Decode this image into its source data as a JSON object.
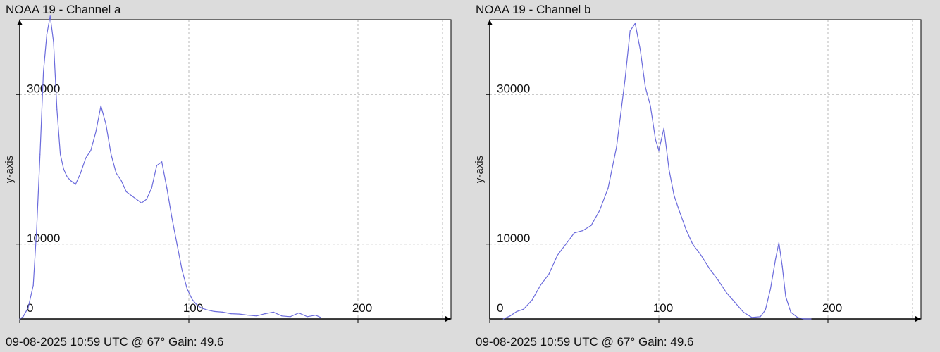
{
  "panels": [
    {
      "title": "NOAA 19 - Channel a",
      "footer": "09-08-2025 10:59 UTC @ 67° Gain: 49.6"
    },
    {
      "title": "NOAA 19 - Channel b",
      "footer": "09-08-2025 10:59 UTC @ 67° Gain: 49.6"
    }
  ],
  "colors": {
    "background": "#dcdcdc",
    "plot_background": "#ffffff",
    "line": "#6b6bdc",
    "grid": "#b8b8b8",
    "axis": "#000000"
  },
  "chart_data": [
    {
      "type": "line",
      "title": "NOAA 19 - Channel a",
      "xlabel": "",
      "ylabel": "y-axis",
      "xlim": [
        0,
        255
      ],
      "ylim": [
        0,
        40000
      ],
      "x_ticks": [
        0,
        100,
        200
      ],
      "y_ticks": [
        10000,
        30000
      ],
      "grid": true,
      "series": [
        {
          "x": [
            0,
            2,
            5,
            8,
            10,
            12,
            14,
            16,
            18,
            20,
            22,
            24,
            26,
            28,
            30,
            33,
            36,
            39,
            42,
            45,
            48,
            51,
            54,
            57,
            60,
            63,
            66,
            69,
            72,
            75,
            78,
            81,
            84,
            87,
            90,
            93,
            96,
            99,
            102,
            105,
            108,
            111,
            115,
            120,
            125,
            130,
            135,
            140,
            145,
            150,
            155,
            160,
            165,
            170,
            175,
            178
          ],
          "y": [
            0,
            300,
            1500,
            4500,
            12000,
            22000,
            33000,
            38000,
            40500,
            37000,
            28000,
            22000,
            20000,
            19000,
            18500,
            18000,
            19500,
            21500,
            22500,
            25000,
            28500,
            26000,
            22000,
            19500,
            18500,
            17000,
            16500,
            16000,
            15500,
            16000,
            17500,
            20500,
            21000,
            17500,
            13500,
            10000,
            6500,
            4000,
            2600,
            1800,
            1400,
            1200,
            1000,
            900,
            700,
            650,
            500,
            400,
            700,
            900,
            400,
            300,
            800,
            300,
            500,
            200
          ]
        }
      ]
    },
    {
      "type": "line",
      "title": "NOAA 19 - Channel b",
      "xlabel": "",
      "ylabel": "y-axis",
      "xlim": [
        0,
        255
      ],
      "ylim": [
        0,
        40000
      ],
      "x_ticks": [
        0,
        100,
        200
      ],
      "y_ticks": [
        10000,
        30000
      ],
      "grid": true,
      "series": [
        {
          "x": [
            8,
            12,
            16,
            20,
            25,
            30,
            35,
            40,
            45,
            50,
            55,
            60,
            65,
            70,
            75,
            80,
            83,
            86,
            89,
            92,
            95,
            98,
            100,
            103,
            106,
            109,
            112,
            116,
            120,
            125,
            130,
            135,
            140,
            145,
            150,
            155,
            160,
            163,
            166,
            169,
            171,
            173,
            175,
            178,
            182,
            186,
            190
          ],
          "y": [
            0,
            400,
            1000,
            1300,
            2500,
            4500,
            6000,
            8500,
            10000,
            11500,
            11800,
            12500,
            14500,
            17500,
            23000,
            32000,
            38500,
            39500,
            36000,
            31000,
            28500,
            24000,
            22500,
            25500,
            20000,
            16500,
            14500,
            12000,
            10000,
            8500,
            6700,
            5200,
            3500,
            2200,
            900,
            200,
            300,
            1200,
            4000,
            8000,
            10200,
            7000,
            3000,
            900,
            200,
            0,
            0
          ]
        }
      ]
    }
  ]
}
